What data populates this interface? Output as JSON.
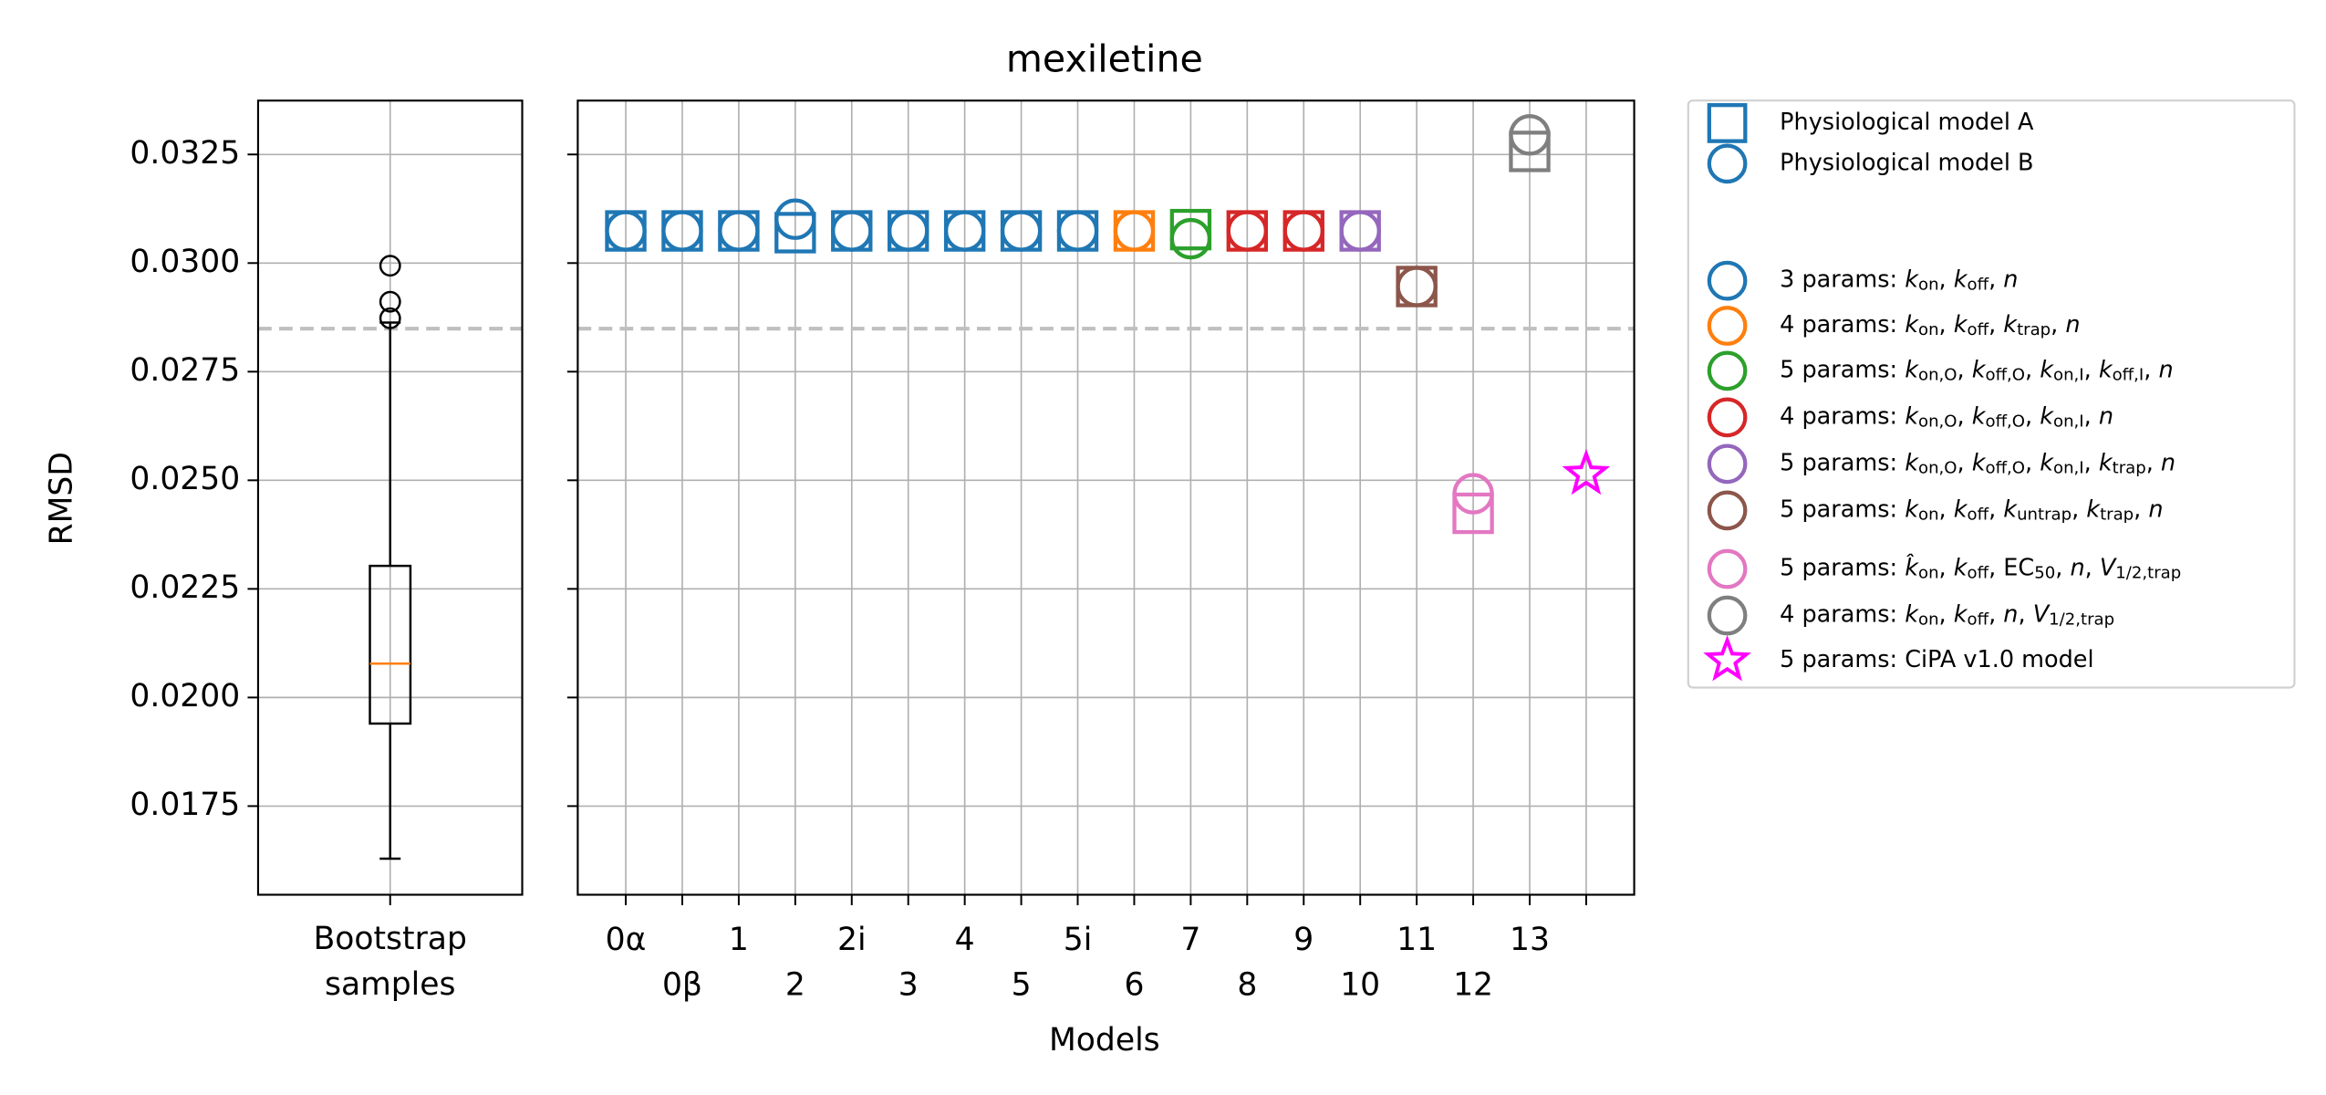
{
  "chart_data": [
    {
      "type": "box",
      "ylabel": "RMSD",
      "categories": [
        "Bootstrap\nsamples"
      ],
      "ylim": [
        0.01546,
        0.03374
      ],
      "yticks": [
        0.0175,
        {
          "value": 0.02,
          "label": "0.0200"
        },
        0.0225,
        {
          "value": 0.025,
          "label": "0.0250"
        },
        0.0275,
        {
          "value": 0.03,
          "label": "0.0300"
        },
        0.0325
      ],
      "grid": true,
      "box": {
        "whislo": 0.01629,
        "q1": 0.0194,
        "med": 0.02078,
        "q3": 0.02303,
        "whishi": 0.02863,
        "fliers": [
          0.02873,
          0.02911,
          0.02994
        ]
      },
      "box_color": "#000000",
      "median_color": "#ff7f0e",
      "hline": 0.02849
    },
    {
      "type": "scatter",
      "title": "mexiletine",
      "xlabel": "Models",
      "categories": [
        "0α",
        "0β",
        "1",
        "2",
        "2i",
        "3",
        "4",
        "5",
        "5i",
        "6",
        "7",
        "8",
        "9",
        "10",
        "11",
        "12",
        "13",
        null
      ],
      "colors": [
        "#1f77b4",
        "#1f77b4",
        "#1f77b4",
        "#1f77b4",
        "#1f77b4",
        "#1f77b4",
        "#1f77b4",
        "#1f77b4",
        "#1f77b4",
        "#ff7f0e",
        "#2ca02c",
        "#d62728",
        "#d62728",
        "#9467bd",
        "#8c564b",
        "#e377c2",
        "#7f7f7f",
        "#ff00ff"
      ],
      "series": [
        {
          "name": "Physiological model A",
          "marker": "square",
          "color": "#1f77b4",
          "values": [
            0.03074,
            0.03074,
            0.03074,
            0.0307,
            0.03074,
            0.03074,
            0.03074,
            0.03074,
            0.03074,
            0.03074,
            0.03077,
            0.03074,
            0.03074,
            0.03074,
            0.02946,
            0.02424,
            0.03257,
            null
          ]
        },
        {
          "name": "Physiological model B",
          "marker": "circle",
          "color": "#1f77b4",
          "values": [
            0.03074,
            0.03074,
            0.03074,
            0.03101,
            0.03074,
            0.03074,
            0.03074,
            0.03074,
            0.03074,
            0.03074,
            0.03056,
            0.03074,
            0.03074,
            0.03074,
            0.02946,
            0.02469,
            0.03295,
            null
          ]
        },
        {
          "name": "5 params: CiPA v1.0 model",
          "marker": "star",
          "color": "#ff00ff",
          "values": [
            null,
            null,
            null,
            null,
            null,
            null,
            null,
            null,
            null,
            null,
            null,
            null,
            null,
            null,
            null,
            null,
            null,
            0.02514
          ]
        }
      ],
      "legend_groups": [
        {
          "name": "3 params: k_on, k_off, n",
          "color": "#1f77b4"
        },
        {
          "name": "4 params: k_on, k_off, k_trap, n",
          "color": "#ff7f0e"
        },
        {
          "name": "5 params: k_on,O, k_off,O, k_on,I, k_off,I, n",
          "color": "#2ca02c"
        },
        {
          "name": "4 params: k_on,O, k_off,O, k_on,I, n",
          "color": "#d62728"
        },
        {
          "name": "5 params: k_on,O, k_off,O, k_on,I, k_trap, n",
          "color": "#9467bd"
        },
        {
          "name": "5 params: k_on, k_off, k_untrap, k_trap, n",
          "color": "#8c564b"
        },
        {
          "name": "5 params: k̂_on, k_off, EC_50, n, V_1/2,trap",
          "color": "#e377c2"
        },
        {
          "name": "4 params: k_on, k_off, n, V_1/2,trap",
          "color": "#7f7f7f"
        }
      ],
      "grid": true,
      "hline": 0.02849,
      "legend": "outside right"
    }
  ]
}
